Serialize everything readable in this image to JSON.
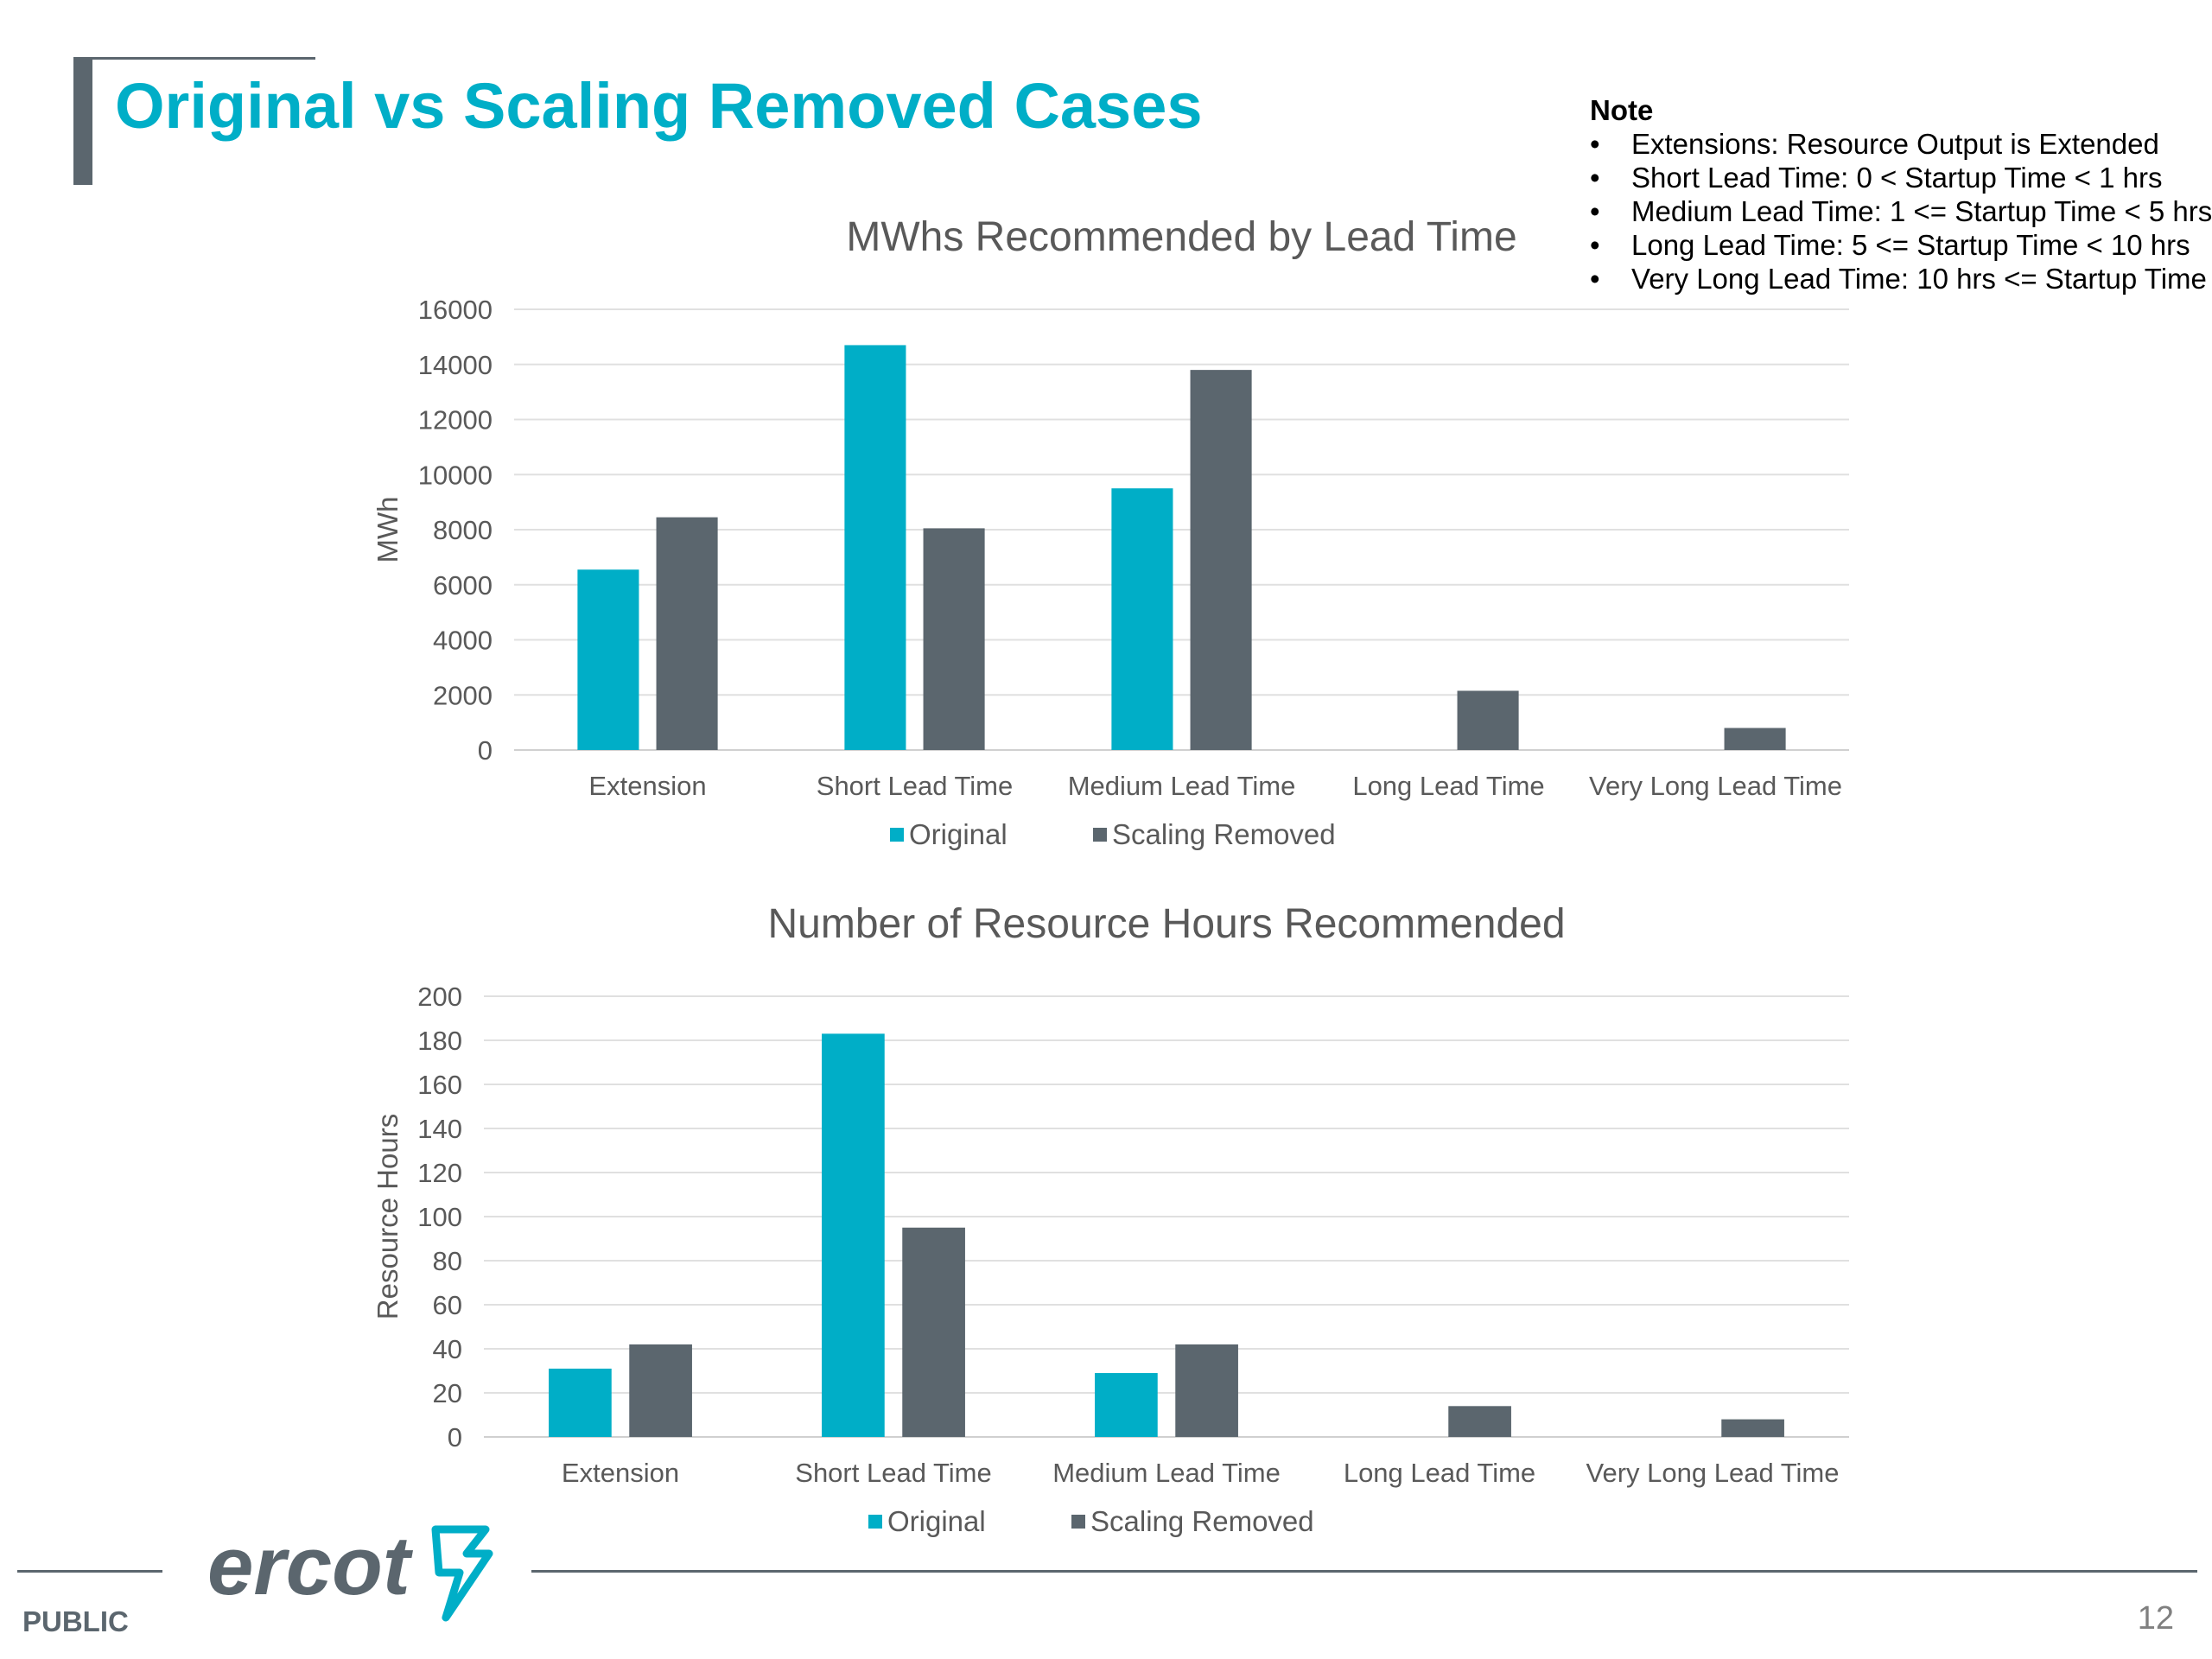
{
  "slide": {
    "title": "Original vs Scaling Removed Cases",
    "footer_label": "PUBLIC",
    "page_number": "12",
    "logo_text": "ercot"
  },
  "note": {
    "title": "Note",
    "items": [
      "Extensions: Resource Output is Extended",
      "Short Lead Time: 0 < Startup Time < 1 hrs",
      "Medium Lead Time: 1 <= Startup Time < 5 hrs",
      "Long Lead Time: 5 <= Startup Time < 10 hrs",
      "Very Long Lead Time: 10 hrs <= Startup Time"
    ]
  },
  "colors": {
    "original": "#00aec7",
    "scaling_removed": "#5b666e",
    "accent": "#00aec7"
  },
  "chart_data": [
    {
      "type": "bar",
      "title": "MWhs Recommended by Lead Time",
      "xlabel": "",
      "ylabel": "MWh",
      "ylim": [
        0,
        16000
      ],
      "yticks": [
        0,
        2000,
        4000,
        6000,
        8000,
        10000,
        12000,
        14000,
        16000
      ],
      "grid": true,
      "legend": "bottom",
      "categories": [
        "Extension",
        "Short Lead Time",
        "Medium Lead Time",
        "Long Lead Time",
        "Very Long Lead Time"
      ],
      "series": [
        {
          "name": "Original",
          "values": [
            6550,
            14700,
            9500,
            0,
            0
          ]
        },
        {
          "name": "Scaling Removed",
          "values": [
            8450,
            8050,
            13800,
            2150,
            800
          ]
        }
      ]
    },
    {
      "type": "bar",
      "title": "Number of Resource Hours Recommended",
      "xlabel": "",
      "ylabel": "Resource Hours",
      "ylim": [
        0,
        200
      ],
      "yticks": [
        0,
        20,
        40,
        60,
        80,
        100,
        120,
        140,
        160,
        180,
        200
      ],
      "grid": true,
      "legend": "bottom",
      "categories": [
        "Extension",
        "Short Lead Time",
        "Medium Lead Time",
        "Long Lead Time",
        "Very Long Lead Time"
      ],
      "series": [
        {
          "name": "Original",
          "values": [
            31,
            183,
            29,
            0,
            0
          ]
        },
        {
          "name": "Scaling Removed",
          "values": [
            42,
            95,
            42,
            14,
            8
          ]
        }
      ]
    }
  ]
}
